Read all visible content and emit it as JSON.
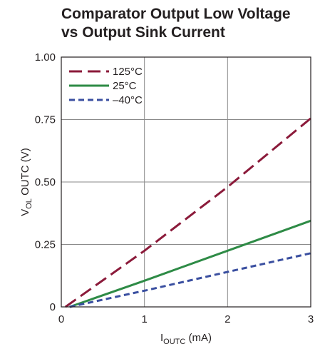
{
  "chart_data": {
    "type": "line",
    "title_lines": [
      "Comparator Output Low Voltage",
      "vs Output Sink Current"
    ],
    "xlabel": {
      "main": "I",
      "sub": "OUTC",
      "suffix": " (mA)"
    },
    "ylabel": {
      "main": "V",
      "sub": "OL",
      "suffix": " OUTC (V)"
    },
    "xlim": [
      0,
      3
    ],
    "ylim": [
      0,
      1
    ],
    "x_ticks": [
      0,
      1,
      2,
      3
    ],
    "x_tick_labels": [
      "0",
      "1",
      "2",
      "3"
    ],
    "y_ticks": [
      0,
      0.25,
      0.5,
      0.75,
      1.0
    ],
    "y_tick_labels": [
      "0",
      "0.25",
      "0.50",
      "0.75",
      "1.00"
    ],
    "grid": true,
    "legend_position": "top-left",
    "series": [
      {
        "name": "125°C",
        "color": "#8b1a3a",
        "dash": "long-dash",
        "x": [
          0.05,
          1,
          2,
          3
        ],
        "y": [
          0,
          0.225,
          0.48,
          0.755
        ]
      },
      {
        "name": "25°C",
        "color": "#2e8b46",
        "dash": "solid",
        "x": [
          0.1,
          1,
          2,
          3
        ],
        "y": [
          0,
          0.105,
          0.225,
          0.345
        ]
      },
      {
        "name": "–40°C",
        "color": "#3a4fa0",
        "dash": "short-dash",
        "x": [
          0.1,
          1,
          2,
          3
        ],
        "y": [
          0,
          0.065,
          0.14,
          0.215
        ]
      }
    ]
  }
}
